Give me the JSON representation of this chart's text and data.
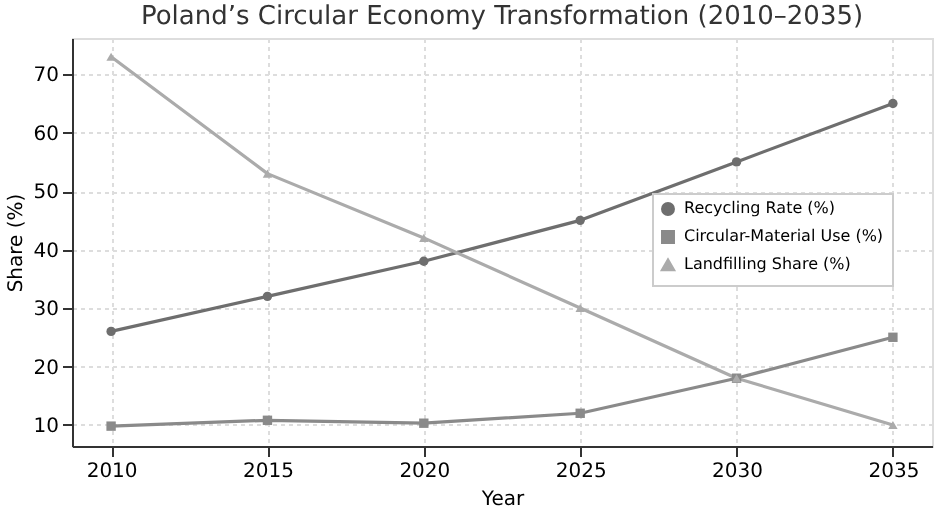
{
  "chart_data": {
    "type": "line",
    "title": "Poland’s Circular Economy Transformation (2010–2035)",
    "xlabel": "Year",
    "ylabel": "Share (%)",
    "x": [
      2010,
      2015,
      2020,
      2025,
      2030,
      2035
    ],
    "series": [
      {
        "name": "Recycling Rate (%)",
        "color": "#6e6e6e",
        "marker": "circle",
        "values": [
          26,
          32,
          38,
          45,
          55,
          65
        ]
      },
      {
        "name": "Circular-Material Use (%)",
        "color": "#8a8a8a",
        "marker": "square",
        "values": [
          9.8,
          10.8,
          10.3,
          12,
          18,
          25
        ]
      },
      {
        "name": "Landfilling Share (%)",
        "color": "#ababab",
        "marker": "triangle",
        "values": [
          73,
          53,
          42,
          30,
          18,
          10
        ]
      }
    ],
    "xlim": [
      2008.75,
      2036.25
    ],
    "xticks": [
      2010,
      2015,
      2020,
      2025,
      2030,
      2035
    ],
    "ylim": [
      6.4,
      76.2
    ],
    "yticks": [
      10,
      20,
      30,
      40,
      50,
      60,
      70
    ],
    "grid": true,
    "legend": "right",
    "line_style": "solid"
  }
}
